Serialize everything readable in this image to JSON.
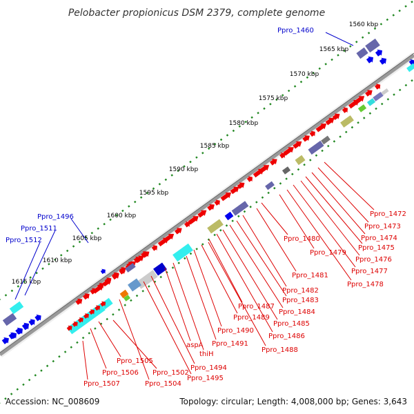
{
  "title": "Pelobacter propionicus DSM 2379, complete genome",
  "footer": {
    "accession": "Accession: NC_008609",
    "summary": "Topology: circular; Length: 4,008,000 bp; Genes: 3,643"
  },
  "colors": {
    "forward_label": "#0000cc",
    "reverse_label": "#dd0000",
    "forward_gene": "#0000ee",
    "reverse_gene": "#ee0000",
    "backbone": "#999999",
    "tick": "#228822"
  },
  "scale_ticks": [
    "1560 kbp",
    "1565 kbp",
    "1570 kbp",
    "1575 kbp",
    "1580 kbp",
    "1585 kbp",
    "1590 kbp",
    "1595 kbp",
    "1600 kbp",
    "1605 kbp",
    "1610 kbp",
    "1615 kbp"
  ],
  "forward_labels": [
    "Ppro_1460",
    "Ppro_1496",
    "Ppro_1511",
    "Ppro_1512"
  ],
  "reverse_labels": [
    "Ppro_1472",
    "Ppro_1473",
    "Ppro_1474",
    "Ppro_1475",
    "Ppro_1476",
    "Ppro_1477",
    "Ppro_1478",
    "Ppro_1479",
    "Ppro_1480",
    "Ppro_1481",
    "Ppro_1482",
    "Ppro_1483",
    "Ppro_1484",
    "Ppro_1485",
    "Ppro_1486",
    "Ppro_1487",
    "Ppro_1488",
    "Ppro_1489",
    "Ppro_1490",
    "Ppro_1491",
    "thiH",
    "aspA",
    "Ppro_1494",
    "Ppro_1495",
    "Ppro_1502",
    "Ppro_1504",
    "Ppro_1505",
    "Ppro_1506",
    "Ppro_1507"
  ]
}
